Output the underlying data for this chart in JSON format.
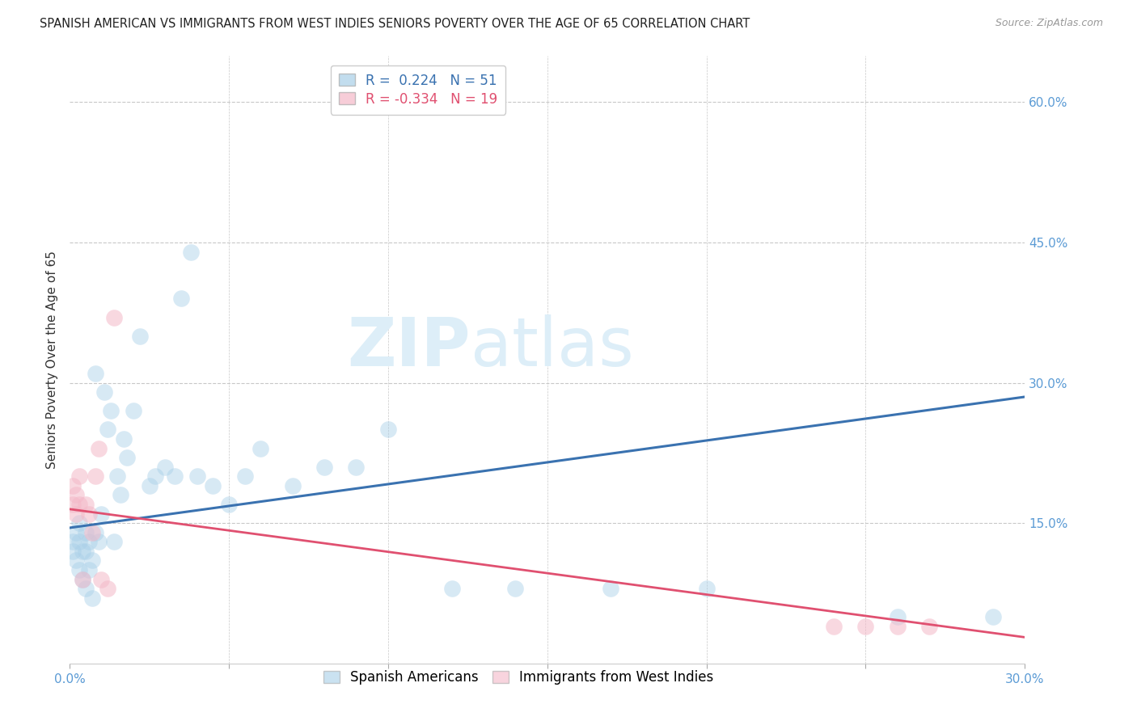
{
  "title": "SPANISH AMERICAN VS IMMIGRANTS FROM WEST INDIES SENIORS POVERTY OVER THE AGE OF 65 CORRELATION CHART",
  "source": "Source: ZipAtlas.com",
  "ylabel": "Seniors Poverty Over the Age of 65",
  "xlim": [
    0.0,
    0.3
  ],
  "ylim": [
    0.0,
    0.65
  ],
  "xticks": [
    0.0,
    0.05,
    0.1,
    0.15,
    0.2,
    0.25,
    0.3
  ],
  "xtick_labels_show": [
    "0.0%",
    "",
    "",
    "",
    "",
    "",
    "30.0%"
  ],
  "yticks_right": [
    0.0,
    0.15,
    0.3,
    0.45,
    0.6
  ],
  "right_tick_labels": [
    "",
    "15.0%",
    "30.0%",
    "45.0%",
    "60.0%"
  ],
  "blue_R": 0.224,
  "blue_N": 51,
  "pink_R": -0.334,
  "pink_N": 19,
  "blue_color": "#a8cfe8",
  "pink_color": "#f4b8c8",
  "blue_line_color": "#3a72b0",
  "pink_line_color": "#e05070",
  "blue_points_x": [
    0.001,
    0.001,
    0.002,
    0.002,
    0.003,
    0.003,
    0.003,
    0.004,
    0.004,
    0.005,
    0.005,
    0.005,
    0.006,
    0.006,
    0.007,
    0.007,
    0.008,
    0.008,
    0.009,
    0.01,
    0.011,
    0.012,
    0.013,
    0.014,
    0.015,
    0.016,
    0.017,
    0.018,
    0.02,
    0.022,
    0.025,
    0.027,
    0.03,
    0.033,
    0.035,
    0.038,
    0.04,
    0.045,
    0.05,
    0.055,
    0.06,
    0.07,
    0.08,
    0.09,
    0.1,
    0.12,
    0.14,
    0.17,
    0.2,
    0.26,
    0.29
  ],
  "blue_points_y": [
    0.13,
    0.12,
    0.14,
    0.11,
    0.1,
    0.13,
    0.15,
    0.12,
    0.09,
    0.14,
    0.12,
    0.08,
    0.1,
    0.13,
    0.11,
    0.07,
    0.14,
    0.31,
    0.13,
    0.16,
    0.29,
    0.25,
    0.27,
    0.13,
    0.2,
    0.18,
    0.24,
    0.22,
    0.27,
    0.35,
    0.19,
    0.2,
    0.21,
    0.2,
    0.39,
    0.44,
    0.2,
    0.19,
    0.17,
    0.2,
    0.23,
    0.19,
    0.21,
    0.21,
    0.25,
    0.08,
    0.08,
    0.08,
    0.08,
    0.05,
    0.05
  ],
  "pink_points_x": [
    0.001,
    0.001,
    0.002,
    0.002,
    0.003,
    0.003,
    0.004,
    0.005,
    0.006,
    0.007,
    0.008,
    0.009,
    0.01,
    0.012,
    0.014,
    0.24,
    0.25,
    0.26,
    0.27
  ],
  "pink_points_y": [
    0.17,
    0.19,
    0.18,
    0.16,
    0.17,
    0.2,
    0.09,
    0.17,
    0.16,
    0.14,
    0.2,
    0.23,
    0.09,
    0.08,
    0.37,
    0.04,
    0.04,
    0.04,
    0.04
  ],
  "watermark_zip": "ZIP",
  "watermark_atlas": "atlas",
  "background_color": "#ffffff",
  "grid_color": "#c8c8c8",
  "title_fontsize": 10.5,
  "axis_label_fontsize": 11,
  "tick_fontsize": 11,
  "legend_fontsize": 12,
  "watermark_fontsize": 60,
  "watermark_color": "#ddeef8",
  "right_tick_color": "#5b9bd5",
  "bottom_tick_color": "#5b9bd5",
  "legend_label_blue": "Spanish Americans",
  "legend_label_pink": "Immigrants from West Indies"
}
